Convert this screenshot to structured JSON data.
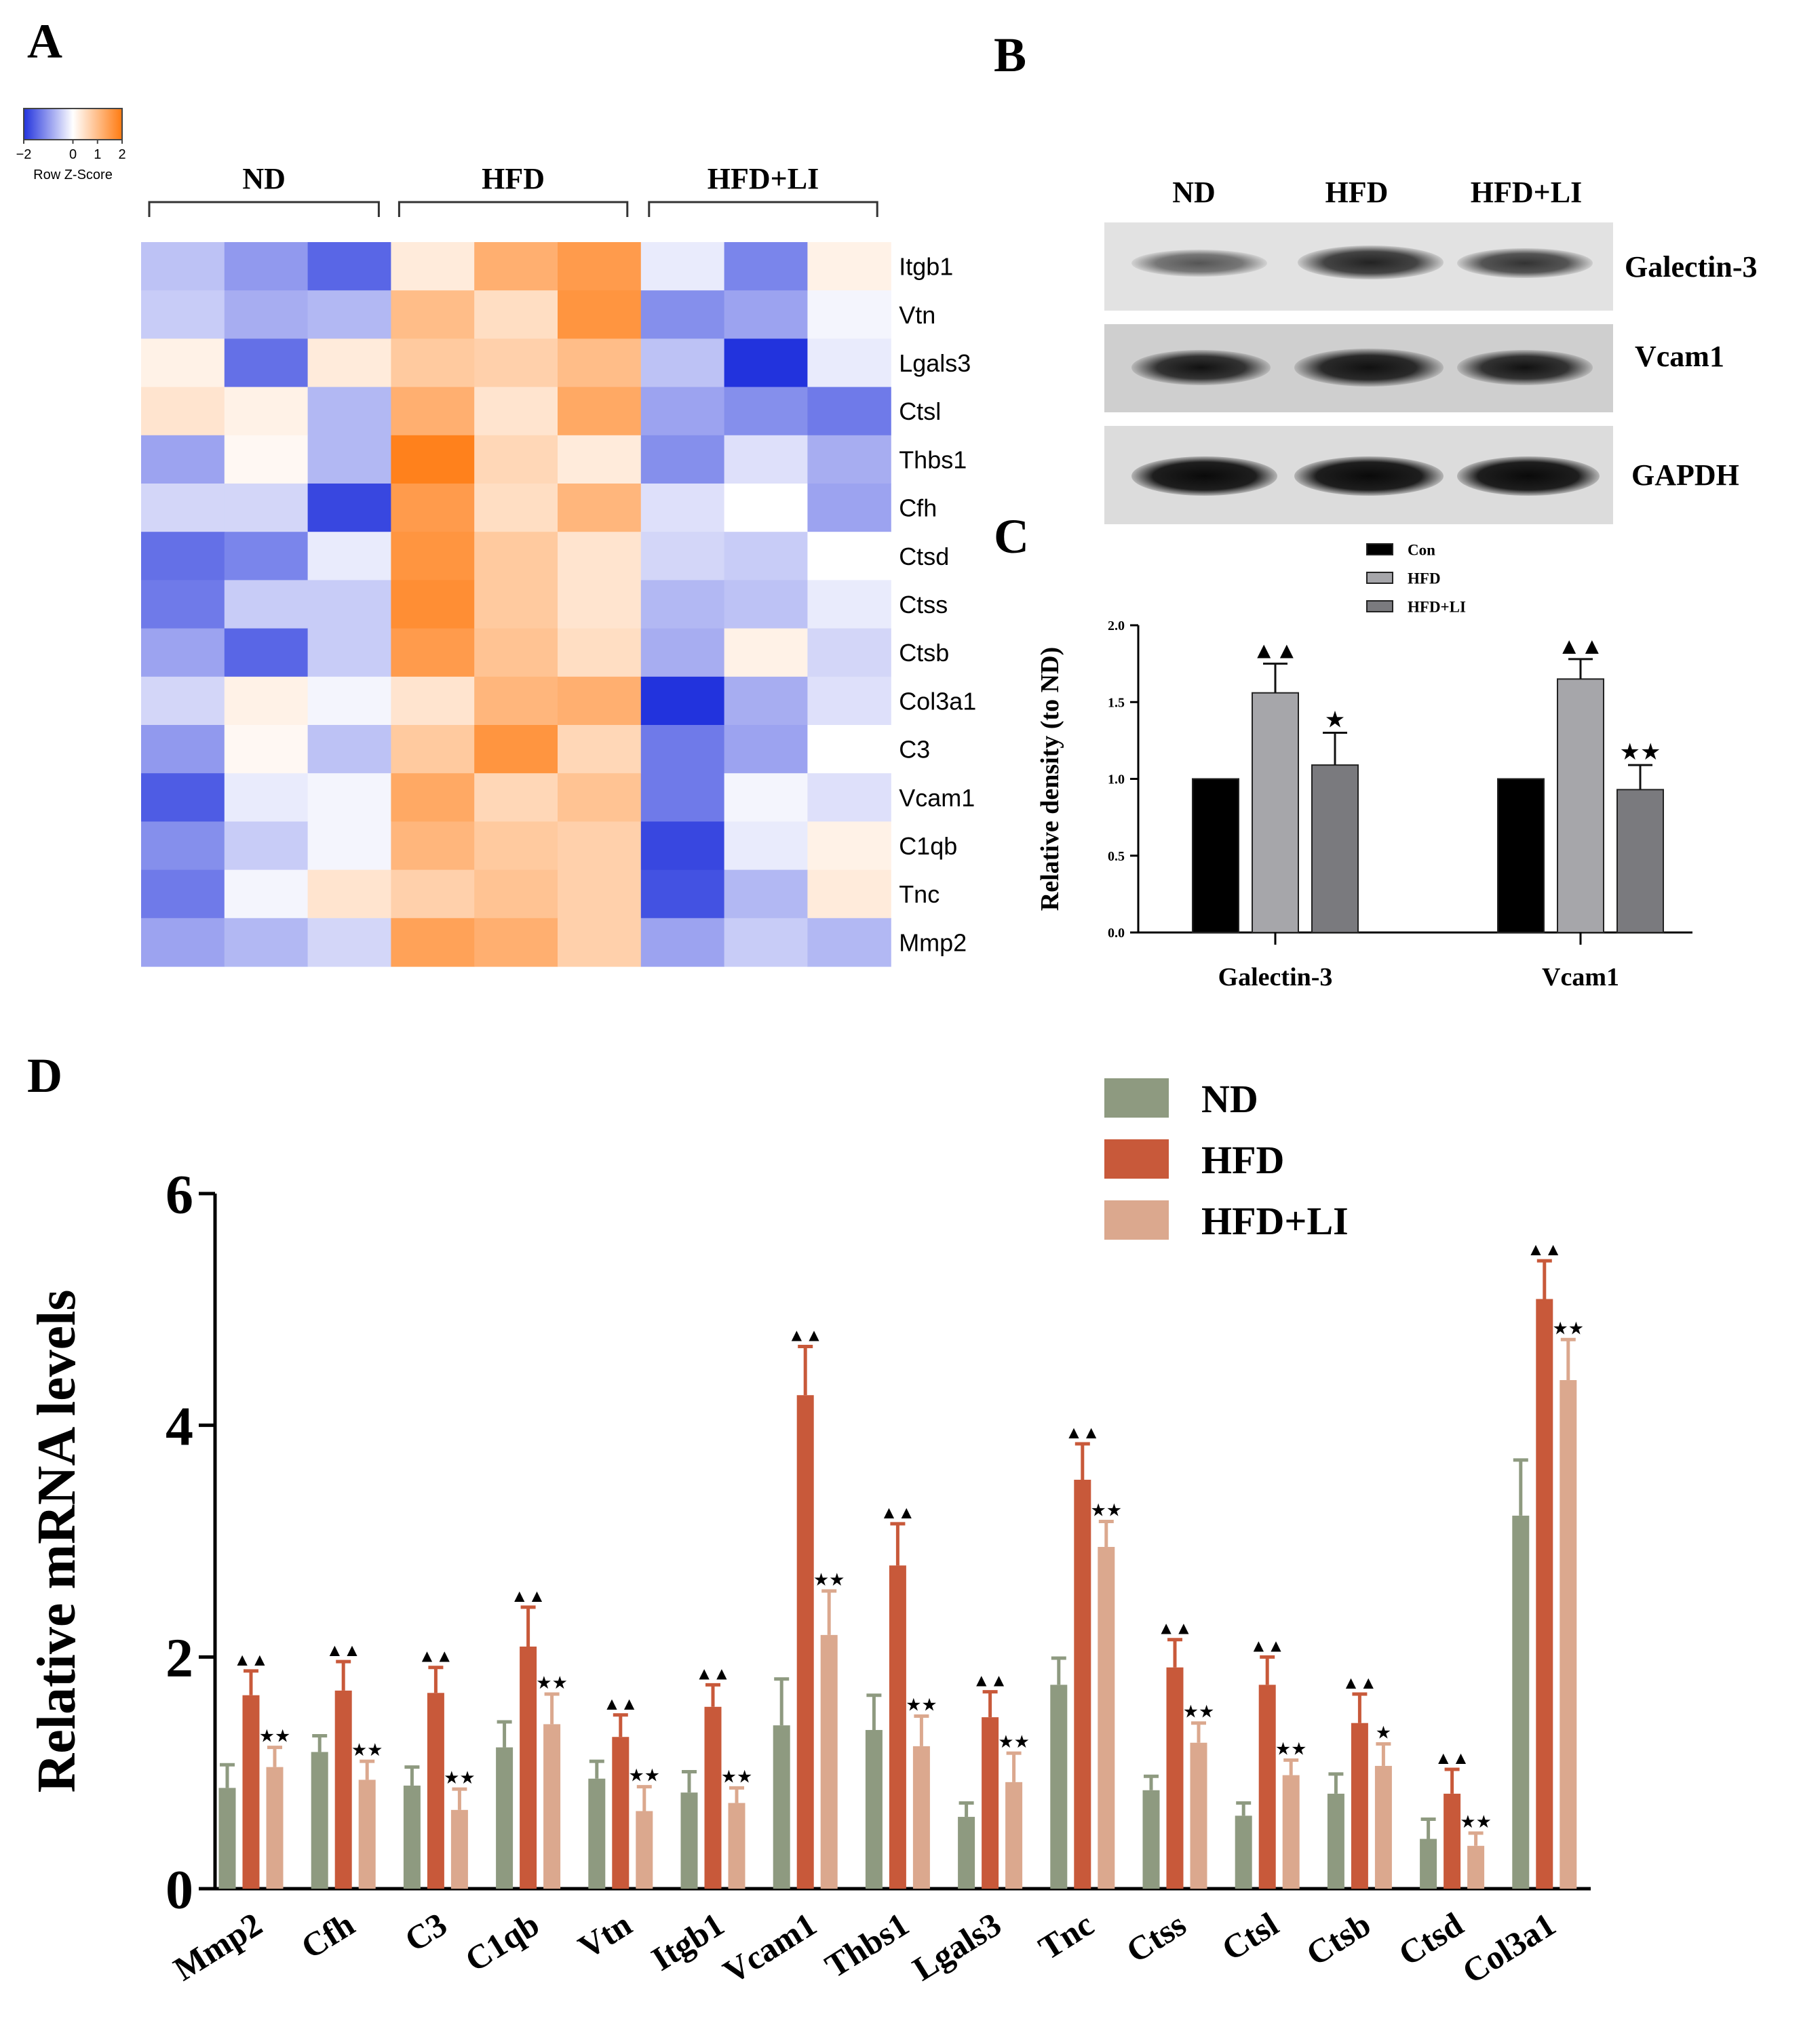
{
  "panels": {
    "A": "A",
    "B": "B",
    "C": "C",
    "D": "D"
  },
  "colors": {
    "low": "#2233dd",
    "mid": "#ffffff",
    "high": "#ff7a10",
    "nd_d": "#8e9a80",
    "hfd_d": "#c8593a",
    "hfdli_d": "#dba88e",
    "nd_c": "#000000",
    "hfd_c": "#a6a6aa",
    "hfdli_c": "#7a7a7e"
  },
  "heatmap": {
    "key_labels": [
      "−2",
      "0",
      "1",
      "2"
    ],
    "key_title": "Row Z-Score",
    "groups": [
      "ND",
      "HFD",
      "HFD+LI"
    ],
    "genes": [
      "Itgb1",
      "Vtn",
      "Lgals3",
      "Ctsl",
      "Thbs1",
      "Cfh",
      "Ctsd",
      "Ctss",
      "Ctsb",
      "Col3a1",
      "C3",
      "Vcam1",
      "C1qb",
      "Tnc",
      "Mmp2"
    ],
    "values": [
      [
        -0.6,
        -1.0,
        -1.5,
        0.3,
        1.2,
        1.5,
        -0.2,
        -1.2,
        0.2
      ],
      [
        -0.5,
        -0.8,
        -0.7,
        1.0,
        0.5,
        1.6,
        -1.1,
        -0.9,
        -0.1
      ],
      [
        0.2,
        -1.4,
        0.3,
        0.8,
        0.7,
        1.0,
        -0.6,
        -2.0,
        -0.2
      ],
      [
        0.4,
        0.2,
        -0.7,
        1.2,
        0.4,
        1.3,
        -0.9,
        -1.1,
        -1.3
      ],
      [
        -0.9,
        0.1,
        -0.7,
        1.9,
        0.6,
        0.3,
        -1.1,
        -0.3,
        -0.8
      ],
      [
        -0.4,
        -0.4,
        -1.8,
        1.5,
        0.5,
        1.1,
        -0.3,
        0.0,
        -0.9
      ],
      [
        -1.4,
        -1.2,
        -0.2,
        1.6,
        0.8,
        0.4,
        -0.4,
        -0.5,
        0.0
      ],
      [
        -1.3,
        -0.5,
        -0.5,
        1.7,
        0.8,
        0.4,
        -0.7,
        -0.6,
        -0.2
      ],
      [
        -0.9,
        -1.5,
        -0.5,
        1.5,
        0.9,
        0.5,
        -0.8,
        0.2,
        -0.4
      ],
      [
        -0.4,
        0.2,
        -0.1,
        0.4,
        1.1,
        1.2,
        -2.0,
        -0.8,
        -0.3
      ],
      [
        -1.0,
        0.1,
        -0.6,
        0.8,
        1.6,
        0.6,
        -1.3,
        -0.9,
        0.0
      ],
      [
        -1.6,
        -0.2,
        -0.1,
        1.3,
        0.6,
        0.9,
        -1.3,
        -0.1,
        -0.3
      ],
      [
        -1.1,
        -0.5,
        -0.1,
        1.1,
        0.8,
        0.7,
        -1.8,
        -0.2,
        0.2
      ],
      [
        -1.3,
        -0.1,
        0.4,
        0.7,
        0.9,
        0.7,
        -1.7,
        -0.7,
        0.3
      ],
      [
        -0.9,
        -0.7,
        -0.4,
        1.4,
        1.2,
        0.7,
        -0.9,
        -0.5,
        -0.7
      ]
    ]
  },
  "blot": {
    "groups": [
      "ND",
      "HFD",
      "HFD+LI"
    ],
    "bands": [
      "Galectin-3",
      "Vcam1",
      "GAPDH"
    ]
  },
  "chart_data": [
    {
      "panel": "C",
      "type": "bar",
      "ylabel": "Relative density (to ND)",
      "xlabel": "",
      "ylim": [
        0,
        2.0
      ],
      "yticks": [
        "0.0",
        "0.5",
        "1.0",
        "1.5",
        "2.0"
      ],
      "categories": [
        "Galectin-3",
        "Vcam1"
      ],
      "legend": [
        "Con",
        "HFD",
        "HFD+LI"
      ],
      "series": [
        {
          "name": "Con",
          "values": [
            1.0,
            1.0
          ],
          "errors": [
            0,
            0
          ],
          "marks": [
            "",
            ""
          ]
        },
        {
          "name": "HFD",
          "values": [
            1.56,
            1.65
          ],
          "errors": [
            0.19,
            0.13
          ],
          "marks": [
            "▲▲",
            "▲▲"
          ]
        },
        {
          "name": "HFD+LI",
          "values": [
            1.09,
            0.93
          ],
          "errors": [
            0.21,
            0.16
          ],
          "marks": [
            "★",
            "★★"
          ]
        }
      ]
    },
    {
      "panel": "D",
      "type": "bar",
      "ylabel": "Relative mRNA levels",
      "xlabel": "",
      "ylim": [
        0,
        6
      ],
      "yticks": [
        "0",
        "2",
        "4",
        "6"
      ],
      "legend": [
        "ND",
        "HFD",
        "HFD+LI"
      ],
      "categories": [
        "Mmp2",
        "Cfh",
        "C3",
        "C1qb",
        "Vtn",
        "Itgb1",
        "Vcam1",
        "Thbs1",
        "Lgals3",
        "Tnc",
        "Ctss",
        "Ctsl",
        "Ctsb",
        "Ctsd",
        "Col3a1"
      ],
      "series": [
        {
          "name": "ND",
          "values": [
            0.87,
            1.18,
            0.89,
            1.22,
            0.95,
            0.83,
            1.41,
            1.37,
            0.62,
            1.76,
            0.85,
            0.63,
            0.82,
            0.43,
            3.22
          ],
          "errors": [
            0.2,
            0.14,
            0.16,
            0.22,
            0.15,
            0.18,
            0.4,
            0.3,
            0.12,
            0.23,
            0.12,
            0.11,
            0.17,
            0.17,
            0.48
          ],
          "marks": [
            "",
            "",
            "",
            "",
            "",
            "",
            "",
            "",
            "",
            "",
            "",
            "",
            "",
            "",
            ""
          ]
        },
        {
          "name": "HFD",
          "values": [
            1.67,
            1.71,
            1.69,
            2.09,
            1.31,
            1.57,
            4.26,
            2.79,
            1.48,
            3.53,
            1.91,
            1.76,
            1.43,
            0.82,
            5.09
          ],
          "errors": [
            0.21,
            0.25,
            0.22,
            0.34,
            0.19,
            0.19,
            0.42,
            0.36,
            0.22,
            0.31,
            0.24,
            0.24,
            0.25,
            0.21,
            0.33
          ],
          "marks": [
            "▲▲",
            "▲▲",
            "▲▲",
            "▲▲",
            "▲▲",
            "▲▲",
            "▲▲",
            "▲▲",
            "▲▲",
            "▲▲",
            "▲▲",
            "▲▲",
            "▲▲",
            "▲▲",
            "▲▲"
          ]
        },
        {
          "name": "HFD+LI",
          "values": [
            1.05,
            0.94,
            0.68,
            1.42,
            0.67,
            0.74,
            2.19,
            1.23,
            0.92,
            2.95,
            1.26,
            0.98,
            1.06,
            0.37,
            4.39
          ],
          "errors": [
            0.17,
            0.16,
            0.18,
            0.26,
            0.21,
            0.13,
            0.38,
            0.26,
            0.25,
            0.22,
            0.17,
            0.13,
            0.19,
            0.11,
            0.35
          ],
          "marks": [
            "★★",
            "★★",
            "★★",
            "★★",
            "★★",
            "★★",
            "★★",
            "★★",
            "★★",
            "★★",
            "★★",
            "★★",
            "★",
            "★★",
            "★★"
          ]
        }
      ]
    }
  ]
}
